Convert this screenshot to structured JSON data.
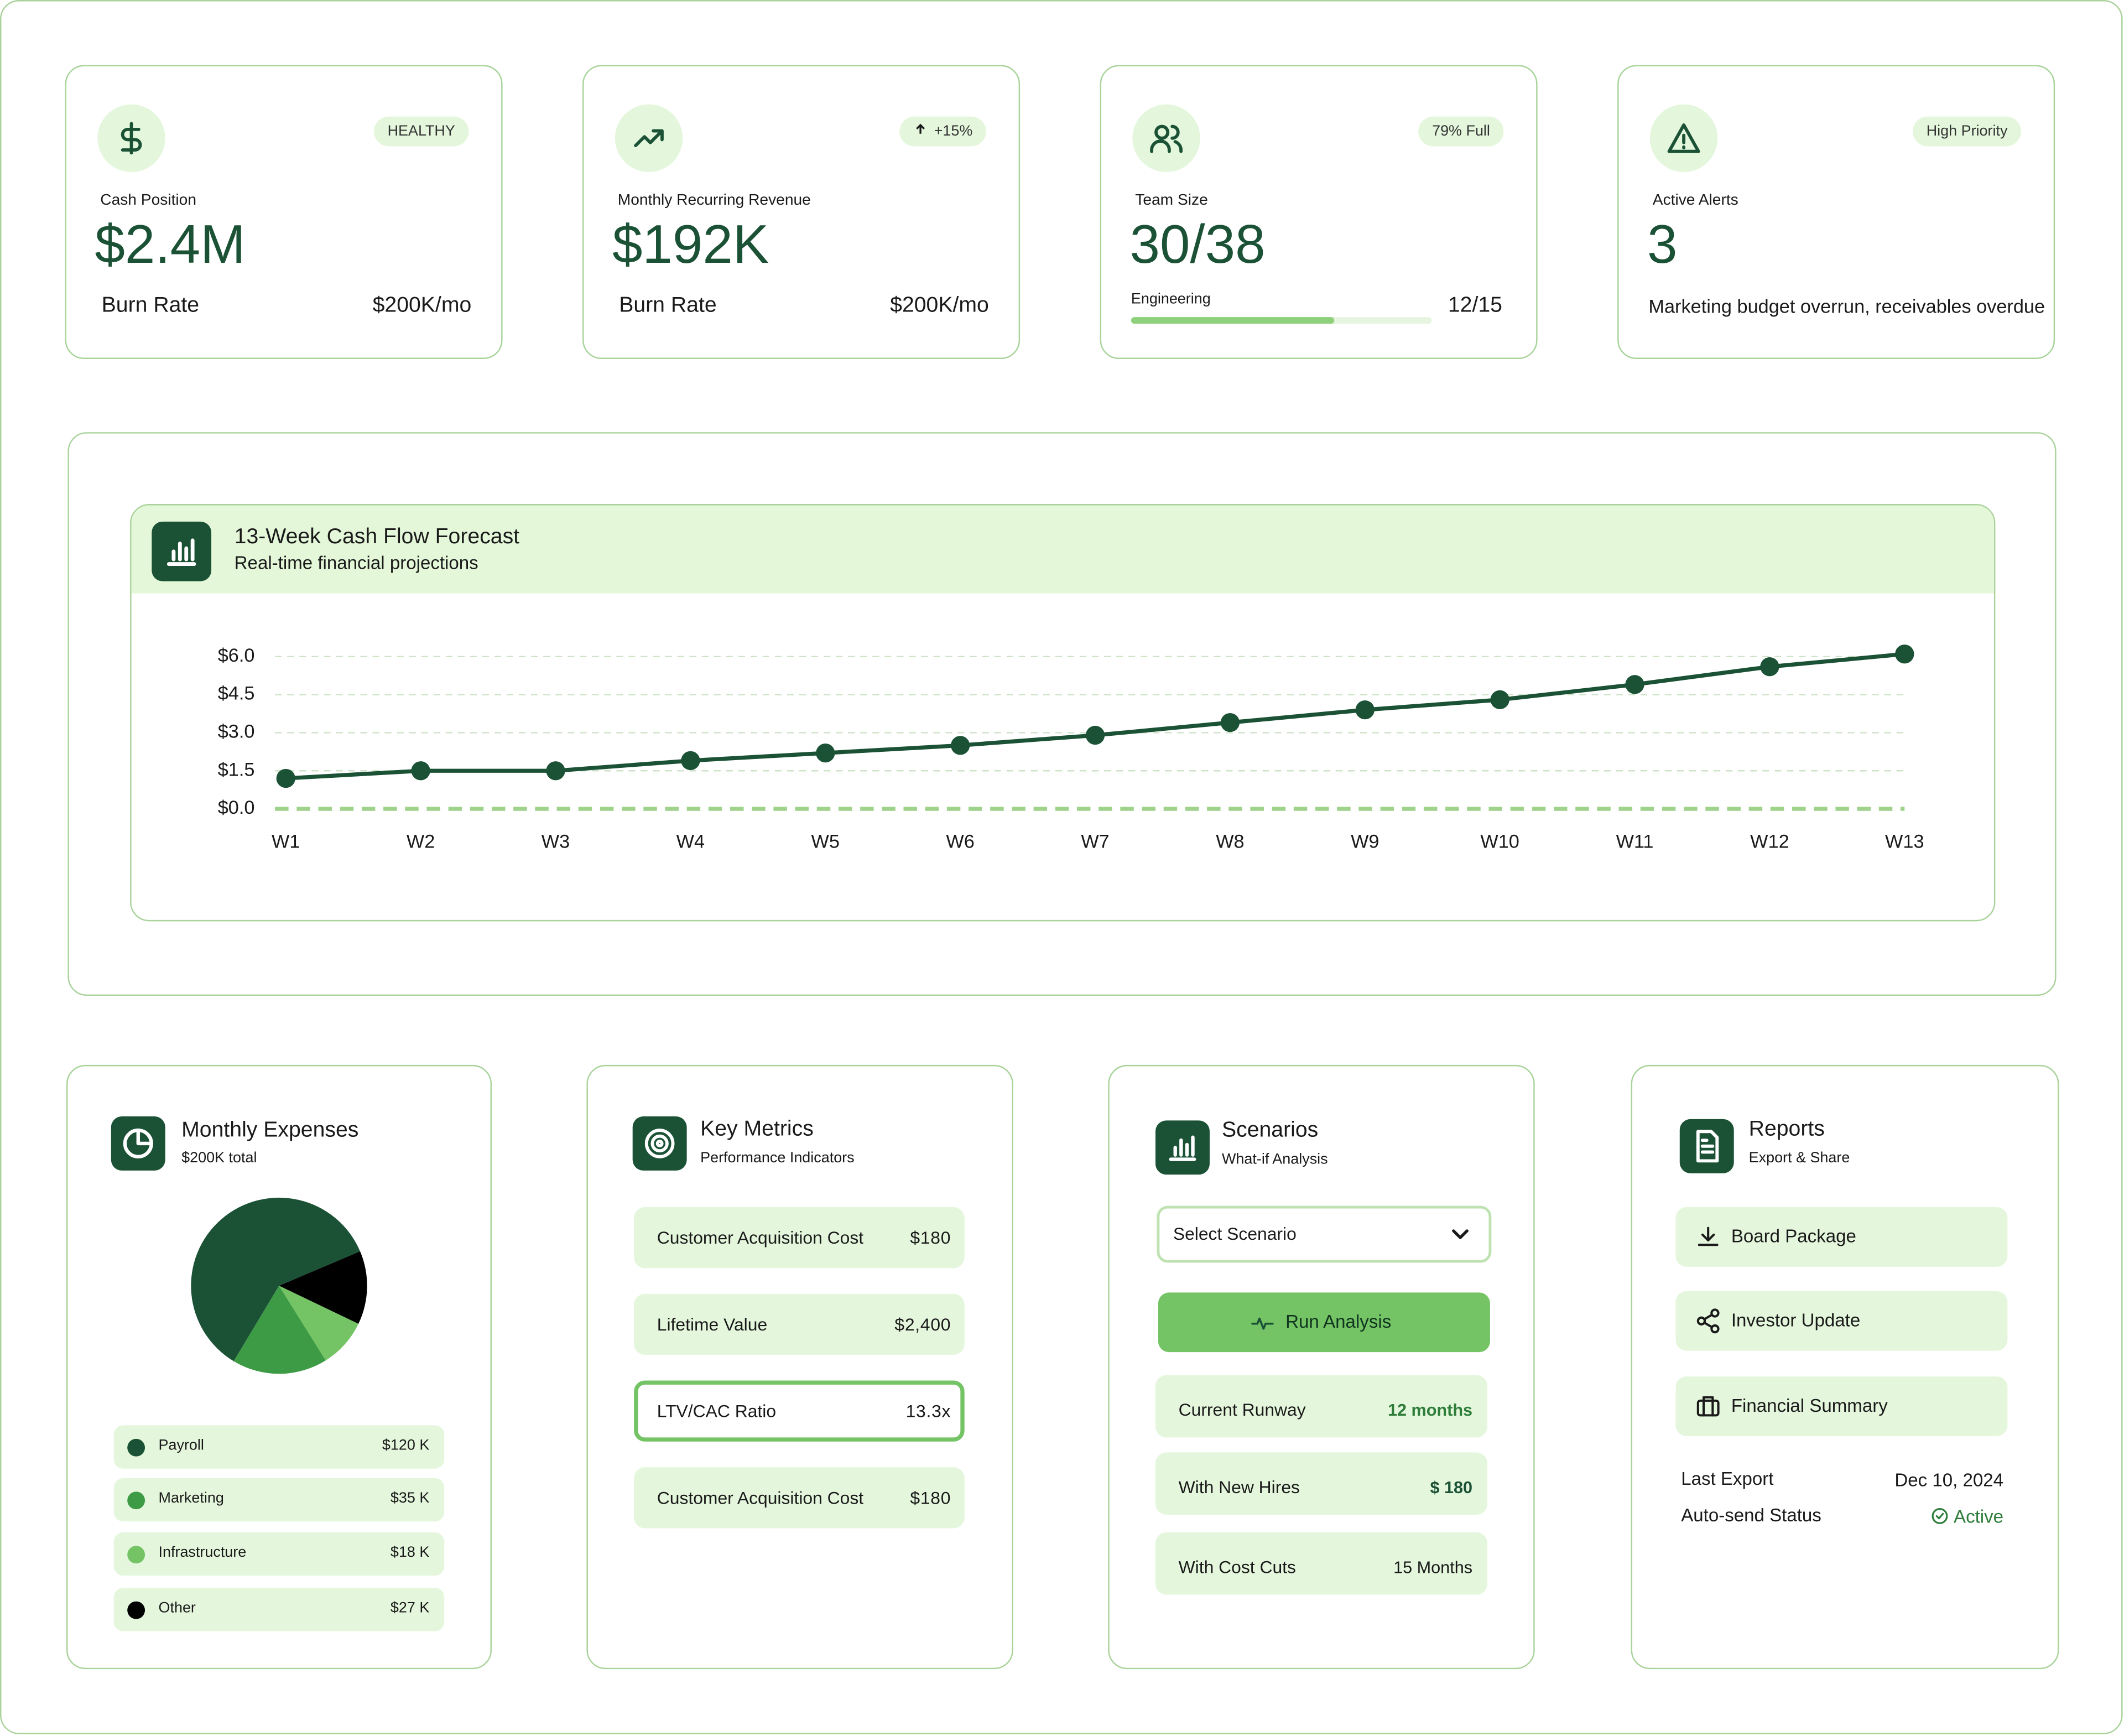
{
  "kpis": [
    {
      "badge": "HEALTHY",
      "label": "Cash Position",
      "value": "$2.4M",
      "footer_label": "Burn Rate",
      "footer_value": "$200K/mo"
    },
    {
      "badge": "+15%",
      "label": "Monthly Recurring Revenue",
      "value": "$192K",
      "footer_label": "Burn Rate",
      "footer_value": "$200K/mo"
    },
    {
      "badge": "79% Full",
      "label": "Team Size",
      "value": "30/38",
      "footer_label": "Engineering",
      "footer_value": "12/15"
    },
    {
      "badge": "High Priority",
      "label": "Active Alerts",
      "value": "3",
      "footer_text": "Marketing budget overrun, receivables overdue"
    }
  ],
  "chart_data": [
    {
      "type": "line",
      "title": "13-Week Cash Flow Forecast",
      "subtitle": "Real-time financial projections",
      "categories": [
        "W1",
        "W2",
        "W3",
        "W4",
        "W5",
        "W6",
        "W7",
        "W8",
        "W9",
        "W10",
        "W11",
        "W12",
        "W13"
      ],
      "series": [
        {
          "color": "#1b5236",
          "values": [
            1.2,
            1.5,
            1.5,
            1.9,
            2.2,
            2.5,
            2.9,
            3.4,
            3.9,
            4.3,
            4.9,
            5.6,
            6.1
          ]
        }
      ],
      "ylim": [
        0,
        6.3
      ],
      "yticks": [
        {
          "value": 0,
          "label": "$0.0"
        },
        {
          "value": 1.5,
          "label": "$1.5"
        },
        {
          "value": 3,
          "label": "$3.0"
        },
        {
          "value": 4.5,
          "label": "$4.5"
        },
        {
          "value": 6,
          "label": "$6.0"
        }
      ],
      "grid": true
    },
    {
      "type": "pie",
      "title": "Monthly Expenses",
      "subtitle": "$200K total",
      "categories": [
        "Payroll",
        "Marketing",
        "Infrastructure",
        "Other"
      ],
      "values": [
        120,
        35,
        18,
        27
      ],
      "value_labels": [
        "$120 K",
        "$35 K",
        "$18 K",
        "$27 K"
      ],
      "colors": [
        "#1b5236",
        "#3d9a45",
        "#74c365",
        "#000000"
      ]
    }
  ],
  "key_metrics": {
    "title": "Key Metrics",
    "subtitle": "Performance Indicators",
    "rows": [
      {
        "label": "Customer Acquisition Cost",
        "value": "$180"
      },
      {
        "label": "Lifetime Value",
        "value": "$2,400"
      },
      {
        "label": "LTV/CAC Ratio",
        "value": "13.3x"
      },
      {
        "label": "Customer Acquisition Cost",
        "value": "$180"
      }
    ]
  },
  "scenarios": {
    "title": "Scenarios",
    "subtitle": "What-if Analysis",
    "select": "Select Scenario",
    "button": "Run Analysis",
    "rows": [
      {
        "label": "Current Runway",
        "value": "12 months"
      },
      {
        "label": "With New Hires",
        "value": "$ 180"
      },
      {
        "label": "With Cost Cuts",
        "value": "15 Months"
      }
    ]
  },
  "reports": {
    "title": "Reports",
    "subtitle": "Export & Share",
    "buttons": [
      "Board Package",
      "Investor Update",
      "Financial Summary"
    ],
    "details": [
      {
        "label": "Last Export",
        "value": "Dec 10, 2024"
      },
      {
        "label": "Auto-send Status",
        "value": "Active"
      }
    ]
  }
}
